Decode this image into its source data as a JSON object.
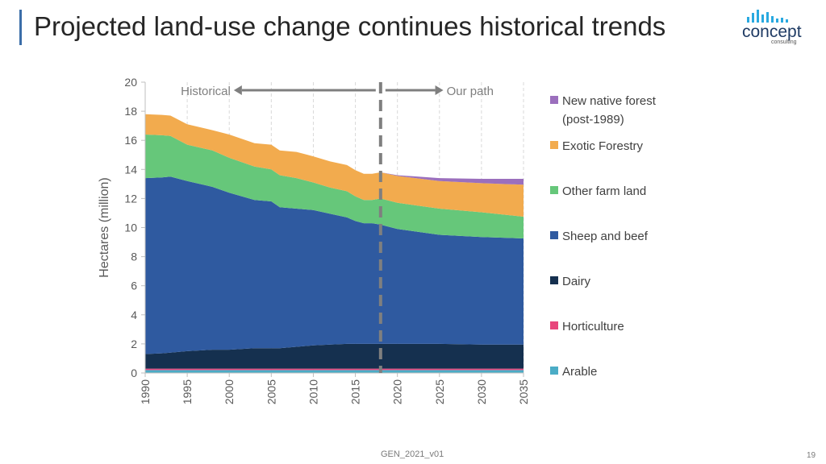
{
  "header": {
    "title": "Projected land-use change continues historical trends",
    "logo_text": "concept",
    "logo_subtext": "consulting"
  },
  "footer": {
    "doc_code": "GEN_2021_v01",
    "page_number": "19"
  },
  "colors": {
    "arable": "#4bacc6",
    "horticulture": "#e8467c",
    "dairy": "#15304f",
    "sheep_beef": "#2f5aa0",
    "other_farm": "#66c77a",
    "exotic_forestry": "#f2ab4e",
    "native_forest": "#9b6fbd",
    "accent": "#3b6ea8"
  },
  "chart_data": {
    "type": "area",
    "stacked": true,
    "ylabel": "Hectares (million)",
    "xlabel": "",
    "ylim": [
      0,
      20
    ],
    "yticks": [
      0,
      2,
      4,
      6,
      8,
      10,
      12,
      14,
      16,
      18,
      20
    ],
    "xlim": [
      1990,
      2035
    ],
    "xticks": [
      1990,
      1995,
      2000,
      2005,
      2010,
      2015,
      2020,
      2025,
      2030,
      2035
    ],
    "grid": "vertical dashed",
    "legend_position": "right",
    "divider_year": 2018,
    "annotations": {
      "left": "Historical",
      "right": "Our path"
    },
    "x": [
      1990,
      1992,
      1993,
      1995,
      1998,
      2000,
      2003,
      2005,
      2006,
      2008,
      2010,
      2012,
      2014,
      2015,
      2016,
      2017,
      2018,
      2020,
      2025,
      2030,
      2035
    ],
    "series": [
      {
        "name": "Arable",
        "key": "arable",
        "values": [
          0.2,
          0.2,
          0.2,
          0.2,
          0.2,
          0.2,
          0.2,
          0.2,
          0.2,
          0.2,
          0.2,
          0.2,
          0.2,
          0.2,
          0.2,
          0.2,
          0.2,
          0.2,
          0.2,
          0.2,
          0.2
        ]
      },
      {
        "name": "Horticulture",
        "key": "horticulture",
        "values": [
          0.1,
          0.1,
          0.1,
          0.1,
          0.1,
          0.1,
          0.1,
          0.1,
          0.1,
          0.1,
          0.1,
          0.1,
          0.1,
          0.1,
          0.1,
          0.1,
          0.1,
          0.1,
          0.1,
          0.1,
          0.1
        ]
      },
      {
        "name": "Dairy",
        "key": "dairy",
        "values": [
          1.0,
          1.05,
          1.1,
          1.2,
          1.3,
          1.3,
          1.4,
          1.4,
          1.4,
          1.5,
          1.6,
          1.65,
          1.7,
          1.7,
          1.7,
          1.7,
          1.7,
          1.7,
          1.7,
          1.65,
          1.65
        ]
      },
      {
        "name": "Sheep and beef",
        "key": "sheep_beef",
        "values": [
          12.1,
          12.1,
          12.1,
          11.7,
          11.2,
          10.8,
          10.2,
          10.1,
          9.7,
          9.5,
          9.3,
          9.0,
          8.7,
          8.45,
          8.3,
          8.3,
          8.2,
          7.9,
          7.5,
          7.4,
          7.3
        ]
      },
      {
        "name": "Other farm land",
        "key": "other_farm",
        "values": [
          3.0,
          2.9,
          2.8,
          2.5,
          2.5,
          2.4,
          2.3,
          2.2,
          2.2,
          2.1,
          1.9,
          1.8,
          1.8,
          1.7,
          1.6,
          1.6,
          1.8,
          1.8,
          1.8,
          1.7,
          1.5
        ]
      },
      {
        "name": "Exotic Forestry",
        "key": "exotic_forestry",
        "values": [
          1.4,
          1.4,
          1.4,
          1.4,
          1.4,
          1.6,
          1.6,
          1.7,
          1.7,
          1.8,
          1.8,
          1.8,
          1.8,
          1.8,
          1.8,
          1.8,
          1.8,
          1.85,
          1.9,
          2.0,
          2.2
        ]
      },
      {
        "name": "New native forest (post-1989)",
        "key": "native_forest",
        "values": [
          0,
          0,
          0,
          0,
          0,
          0,
          0,
          0,
          0,
          0,
          0,
          0,
          0,
          0,
          0,
          0,
          0,
          0.05,
          0.2,
          0.3,
          0.4
        ]
      }
    ]
  }
}
